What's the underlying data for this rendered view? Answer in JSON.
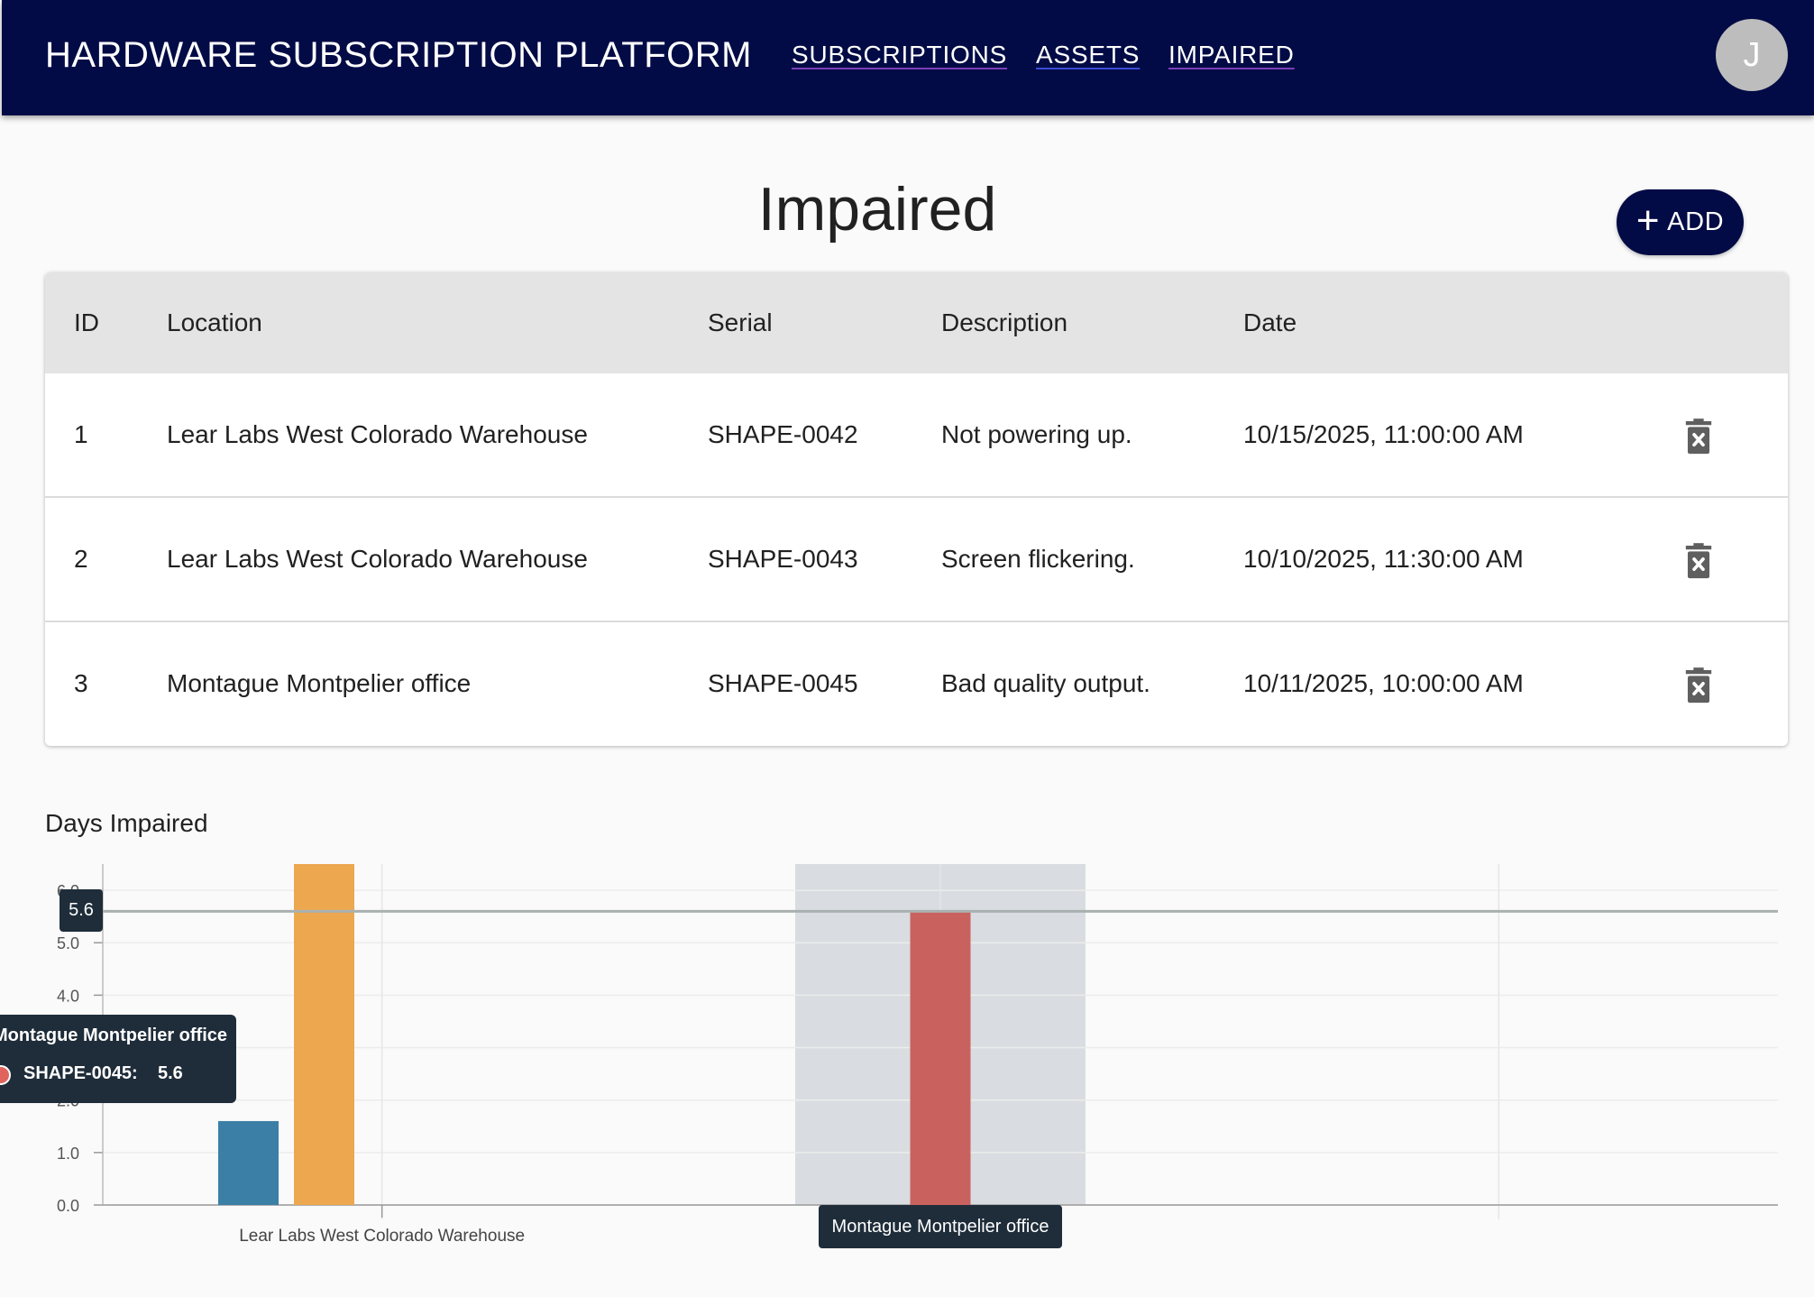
{
  "header": {
    "title": "HARDWARE SUBSCRIPTION PLATFORM",
    "nav": {
      "subscriptions": "SUBSCRIPTIONS",
      "assets": "ASSETS",
      "impaired": "IMPAIRED"
    },
    "avatar_initial": "J",
    "bg_color": "#020b45"
  },
  "page": {
    "title": "Impaired",
    "add_label": "ADD"
  },
  "table": {
    "columns": [
      "ID",
      "Location",
      "Serial",
      "Description",
      "Date"
    ],
    "rows": [
      {
        "id": "1",
        "location": "Lear Labs West Colorado Warehouse",
        "serial": "SHAPE-0042",
        "description": "Not powering up.",
        "date": "10/15/2025, 11:00:00 AM"
      },
      {
        "id": "2",
        "location": "Lear Labs West Colorado Warehouse",
        "serial": "SHAPE-0043",
        "description": "Screen flickering.",
        "date": "10/10/2025, 11:30:00 AM"
      },
      {
        "id": "3",
        "location": "Montague Montpelier office",
        "serial": "SHAPE-0045",
        "description": "Bad quality output.",
        "date": "10/11/2025, 10:00:00 AM"
      }
    ],
    "row_action_icon": "trash-icon"
  },
  "chart_data": {
    "type": "bar",
    "title": "Days Impaired",
    "categories": [
      "Lear Labs West Colorado Warehouse",
      "Montague Montpelier office",
      ""
    ],
    "series": [
      {
        "name": "SHAPE-0042",
        "color": "#3c7fa6",
        "values": [
          1.6,
          null,
          null
        ]
      },
      {
        "name": "SHAPE-0043",
        "color": "#eca74f",
        "values": [
          6.5,
          null,
          null
        ]
      },
      {
        "name": "SHAPE-0045",
        "color": "#c9625f",
        "values": [
          null,
          5.6,
          null
        ]
      }
    ],
    "y_ticks": [
      "0.0",
      "1.0",
      "2.0",
      "3.0",
      "4.0",
      "5.0",
      "6.0"
    ],
    "ylim": [
      0,
      6.5
    ],
    "grid": true,
    "crosshair_value": "5.6",
    "highlighted_category": "Montague Montpelier office",
    "tooltip": {
      "title": "Montague Montpelier office",
      "series": "SHAPE-0045:",
      "value": "5.6"
    }
  }
}
